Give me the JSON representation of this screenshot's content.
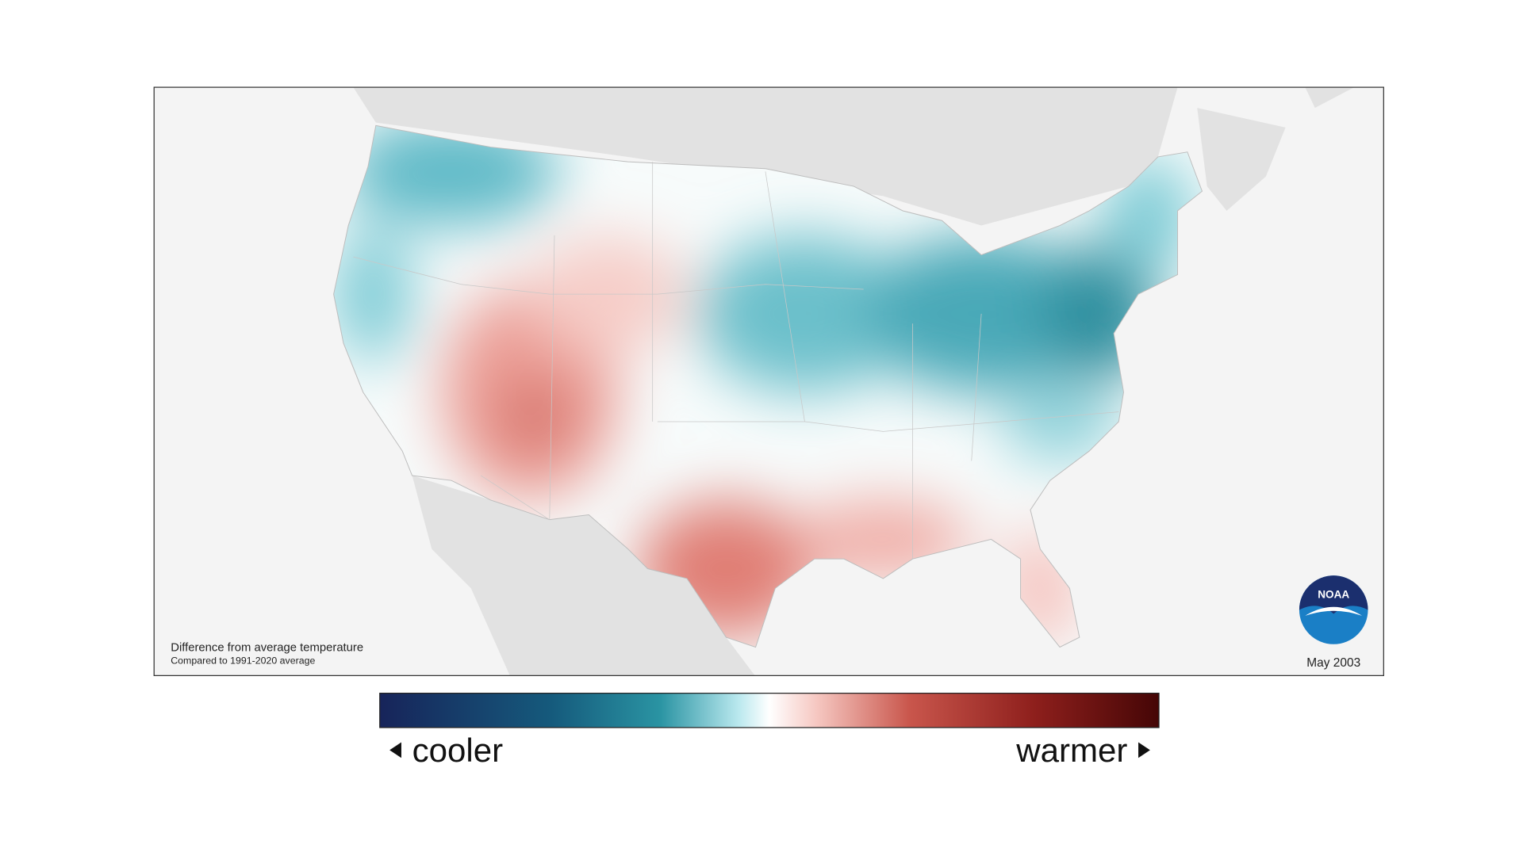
{
  "map": {
    "caption": {
      "title": "Difference from average temperature",
      "subtitle": "Compared to 1991-2020 average"
    },
    "date": "May 2003",
    "logo": "NOAA"
  },
  "legend": {
    "low_label": "cooler",
    "high_label": "warmer"
  }
}
